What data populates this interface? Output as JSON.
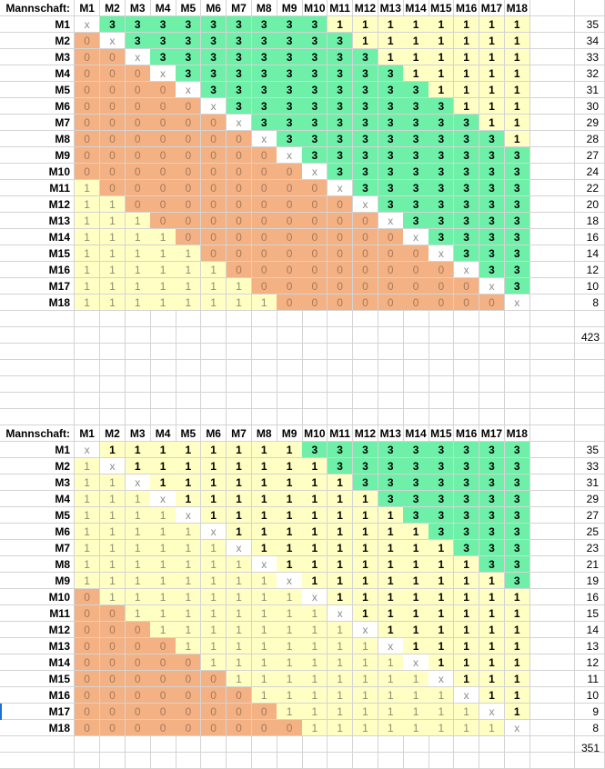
{
  "tables": [
    {
      "header_label": "Mannschaft:",
      "columns": [
        "M1",
        "M2",
        "M3",
        "M4",
        "M5",
        "M6",
        "M7",
        "M8",
        "M9",
        "M10",
        "M11",
        "M12",
        "M13",
        "M14",
        "M15",
        "M16",
        "M17",
        "M18"
      ],
      "rows": [
        {
          "label": "M1",
          "cells": [
            "x",
            "3",
            "3",
            "3",
            "3",
            "3",
            "3",
            "3",
            "3",
            "3",
            "1",
            "1",
            "1",
            "1",
            "1",
            "1",
            "1",
            "1"
          ],
          "total": "35"
        },
        {
          "label": "M2",
          "cells": [
            "0",
            "x",
            "3",
            "3",
            "3",
            "3",
            "3",
            "3",
            "3",
            "3",
            "3",
            "1",
            "1",
            "1",
            "1",
            "1",
            "1",
            "1"
          ],
          "total": "34"
        },
        {
          "label": "M3",
          "cells": [
            "0",
            "0",
            "x",
            "3",
            "3",
            "3",
            "3",
            "3",
            "3",
            "3",
            "3",
            "3",
            "1",
            "1",
            "1",
            "1",
            "1",
            "1"
          ],
          "total": "33"
        },
        {
          "label": "M4",
          "cells": [
            "0",
            "0",
            "0",
            "x",
            "3",
            "3",
            "3",
            "3",
            "3",
            "3",
            "3",
            "3",
            "3",
            "1",
            "1",
            "1",
            "1",
            "1"
          ],
          "total": "32"
        },
        {
          "label": "M5",
          "cells": [
            "0",
            "0",
            "0",
            "0",
            "x",
            "3",
            "3",
            "3",
            "3",
            "3",
            "3",
            "3",
            "3",
            "3",
            "1",
            "1",
            "1",
            "1"
          ],
          "total": "31"
        },
        {
          "label": "M6",
          "cells": [
            "0",
            "0",
            "0",
            "0",
            "0",
            "x",
            "3",
            "3",
            "3",
            "3",
            "3",
            "3",
            "3",
            "3",
            "3",
            "1",
            "1",
            "1"
          ],
          "total": "30"
        },
        {
          "label": "M7",
          "cells": [
            "0",
            "0",
            "0",
            "0",
            "0",
            "0",
            "x",
            "3",
            "3",
            "3",
            "3",
            "3",
            "3",
            "3",
            "3",
            "3",
            "1",
            "1"
          ],
          "total": "29"
        },
        {
          "label": "M8",
          "cells": [
            "0",
            "0",
            "0",
            "0",
            "0",
            "0",
            "0",
            "x",
            "3",
            "3",
            "3",
            "3",
            "3",
            "3",
            "3",
            "3",
            "3",
            "1"
          ],
          "total": "28"
        },
        {
          "label": "M9",
          "cells": [
            "0",
            "0",
            "0",
            "0",
            "0",
            "0",
            "0",
            "0",
            "x",
            "3",
            "3",
            "3",
            "3",
            "3",
            "3",
            "3",
            "3",
            "3"
          ],
          "total": "27"
        },
        {
          "label": "M10",
          "cells": [
            "0",
            "0",
            "0",
            "0",
            "0",
            "0",
            "0",
            "0",
            "0",
            "x",
            "3",
            "3",
            "3",
            "3",
            "3",
            "3",
            "3",
            "3"
          ],
          "total": "24"
        },
        {
          "label": "M11",
          "cells": [
            "1",
            "0",
            "0",
            "0",
            "0",
            "0",
            "0",
            "0",
            "0",
            "0",
            "x",
            "3",
            "3",
            "3",
            "3",
            "3",
            "3",
            "3"
          ],
          "total": "22"
        },
        {
          "label": "M12",
          "cells": [
            "1",
            "1",
            "0",
            "0",
            "0",
            "0",
            "0",
            "0",
            "0",
            "0",
            "0",
            "x",
            "3",
            "3",
            "3",
            "3",
            "3",
            "3"
          ],
          "total": "20"
        },
        {
          "label": "M13",
          "cells": [
            "1",
            "1",
            "1",
            "0",
            "0",
            "0",
            "0",
            "0",
            "0",
            "0",
            "0",
            "0",
            "x",
            "3",
            "3",
            "3",
            "3",
            "3"
          ],
          "total": "18"
        },
        {
          "label": "M14",
          "cells": [
            "1",
            "1",
            "1",
            "1",
            "0",
            "0",
            "0",
            "0",
            "0",
            "0",
            "0",
            "0",
            "0",
            "x",
            "3",
            "3",
            "3",
            "3"
          ],
          "total": "16"
        },
        {
          "label": "M15",
          "cells": [
            "1",
            "1",
            "1",
            "1",
            "1",
            "0",
            "0",
            "0",
            "0",
            "0",
            "0",
            "0",
            "0",
            "0",
            "x",
            "3",
            "3",
            "3"
          ],
          "total": "14"
        },
        {
          "label": "M16",
          "cells": [
            "1",
            "1",
            "1",
            "1",
            "1",
            "1",
            "0",
            "0",
            "0",
            "0",
            "0",
            "0",
            "0",
            "0",
            "0",
            "x",
            "3",
            "3"
          ],
          "total": "12"
        },
        {
          "label": "M17",
          "cells": [
            "1",
            "1",
            "1",
            "1",
            "1",
            "1",
            "1",
            "0",
            "0",
            "0",
            "0",
            "0",
            "0",
            "0",
            "0",
            "0",
            "x",
            "3"
          ],
          "total": "10"
        },
        {
          "label": "M18",
          "cells": [
            "1",
            "1",
            "1",
            "1",
            "1",
            "1",
            "1",
            "1",
            "0",
            "0",
            "0",
            "0",
            "0",
            "0",
            "0",
            "0",
            "0",
            "x"
          ],
          "total": "8"
        }
      ],
      "grand_total": "423"
    },
    {
      "header_label": "Mannschaft:",
      "columns": [
        "M1",
        "M2",
        "M3",
        "M4",
        "M5",
        "M6",
        "M7",
        "M8",
        "M9",
        "M10",
        "M11",
        "M12",
        "M13",
        "M14",
        "M15",
        "M16",
        "M17",
        "M18"
      ],
      "rows": [
        {
          "label": "M1",
          "cells": [
            "x",
            "1",
            "1",
            "1",
            "1",
            "1",
            "1",
            "1",
            "1",
            "3",
            "3",
            "3",
            "3",
            "3",
            "3",
            "3",
            "3",
            "3"
          ],
          "total": "35"
        },
        {
          "label": "M2",
          "cells": [
            "1",
            "x",
            "1",
            "1",
            "1",
            "1",
            "1",
            "1",
            "1",
            "1",
            "3",
            "3",
            "3",
            "3",
            "3",
            "3",
            "3",
            "3"
          ],
          "total": "33"
        },
        {
          "label": "M3",
          "cells": [
            "1",
            "1",
            "x",
            "1",
            "1",
            "1",
            "1",
            "1",
            "1",
            "1",
            "1",
            "3",
            "3",
            "3",
            "3",
            "3",
            "3",
            "3"
          ],
          "total": "31"
        },
        {
          "label": "M4",
          "cells": [
            "1",
            "1",
            "1",
            "x",
            "1",
            "1",
            "1",
            "1",
            "1",
            "1",
            "1",
            "1",
            "3",
            "3",
            "3",
            "3",
            "3",
            "3"
          ],
          "total": "29"
        },
        {
          "label": "M5",
          "cells": [
            "1",
            "1",
            "1",
            "1",
            "x",
            "1",
            "1",
            "1",
            "1",
            "1",
            "1",
            "1",
            "1",
            "3",
            "3",
            "3",
            "3",
            "3"
          ],
          "total": "27"
        },
        {
          "label": "M6",
          "cells": [
            "1",
            "1",
            "1",
            "1",
            "1",
            "x",
            "1",
            "1",
            "1",
            "1",
            "1",
            "1",
            "1",
            "1",
            "3",
            "3",
            "3",
            "3"
          ],
          "total": "25"
        },
        {
          "label": "M7",
          "cells": [
            "1",
            "1",
            "1",
            "1",
            "1",
            "1",
            "x",
            "1",
            "1",
            "1",
            "1",
            "1",
            "1",
            "1",
            "1",
            "3",
            "3",
            "3"
          ],
          "total": "23"
        },
        {
          "label": "M8",
          "cells": [
            "1",
            "1",
            "1",
            "1",
            "1",
            "1",
            "1",
            "x",
            "1",
            "1",
            "1",
            "1",
            "1",
            "1",
            "1",
            "1",
            "3",
            "3"
          ],
          "total": "21"
        },
        {
          "label": "M9",
          "cells": [
            "1",
            "1",
            "1",
            "1",
            "1",
            "1",
            "1",
            "1",
            "x",
            "1",
            "1",
            "1",
            "1",
            "1",
            "1",
            "1",
            "1",
            "3"
          ],
          "total": "19"
        },
        {
          "label": "M10",
          "cells": [
            "0",
            "1",
            "1",
            "1",
            "1",
            "1",
            "1",
            "1",
            "1",
            "x",
            "1",
            "1",
            "1",
            "1",
            "1",
            "1",
            "1",
            "1"
          ],
          "total": "16"
        },
        {
          "label": "M11",
          "cells": [
            "0",
            "0",
            "1",
            "1",
            "1",
            "1",
            "1",
            "1",
            "1",
            "1",
            "x",
            "1",
            "1",
            "1",
            "1",
            "1",
            "1",
            "1"
          ],
          "total": "15"
        },
        {
          "label": "M12",
          "cells": [
            "0",
            "0",
            "0",
            "1",
            "1",
            "1",
            "1",
            "1",
            "1",
            "1",
            "1",
            "x",
            "1",
            "1",
            "1",
            "1",
            "1",
            "1"
          ],
          "total": "14"
        },
        {
          "label": "M13",
          "cells": [
            "0",
            "0",
            "0",
            "0",
            "1",
            "1",
            "1",
            "1",
            "1",
            "1",
            "1",
            "1",
            "x",
            "1",
            "1",
            "1",
            "1",
            "1"
          ],
          "total": "13"
        },
        {
          "label": "M14",
          "cells": [
            "0",
            "0",
            "0",
            "0",
            "0",
            "1",
            "1",
            "1",
            "1",
            "1",
            "1",
            "1",
            "1",
            "x",
            "1",
            "1",
            "1",
            "1"
          ],
          "total": "12"
        },
        {
          "label": "M15",
          "cells": [
            "0",
            "0",
            "0",
            "0",
            "0",
            "0",
            "1",
            "1",
            "1",
            "1",
            "1",
            "1",
            "1",
            "1",
            "x",
            "1",
            "1",
            "1"
          ],
          "total": "11"
        },
        {
          "label": "M16",
          "cells": [
            "0",
            "0",
            "0",
            "0",
            "0",
            "0",
            "0",
            "1",
            "1",
            "1",
            "1",
            "1",
            "1",
            "1",
            "1",
            "x",
            "1",
            "1"
          ],
          "total": "10"
        },
        {
          "label": "M17",
          "cells": [
            "0",
            "0",
            "0",
            "0",
            "0",
            "0",
            "0",
            "0",
            "1",
            "1",
            "1",
            "1",
            "1",
            "1",
            "1",
            "1",
            "x",
            "1"
          ],
          "total": "9"
        },
        {
          "label": "M18",
          "cells": [
            "0",
            "0",
            "0",
            "0",
            "0",
            "0",
            "0",
            "0",
            "0",
            "1",
            "1",
            "1",
            "1",
            "1",
            "1",
            "1",
            "1",
            "x"
          ],
          "total": "8"
        }
      ],
      "grand_total": "351"
    }
  ]
}
